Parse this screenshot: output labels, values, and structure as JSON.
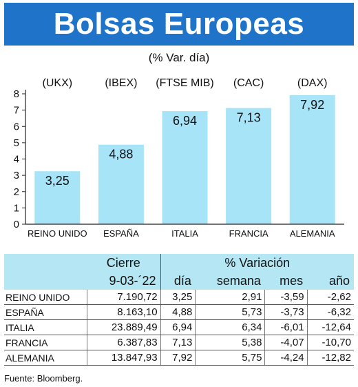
{
  "header": {
    "title": "Bolsas Europeas",
    "subtitle": "(% Var. día)"
  },
  "chart_data": {
    "type": "bar",
    "categories": [
      "REINO UNIDO",
      "ESPAÑA",
      "ITALIA",
      "FRANCIA",
      "ALEMANIA"
    ],
    "indices": [
      "(UKX)",
      "(IBEX)",
      "(FTSE MIB)",
      "(CAC)",
      "(DAX)"
    ],
    "values": [
      3.25,
      4.88,
      6.94,
      7.13,
      7.92
    ],
    "value_labels": [
      "3,25",
      "4,88",
      "6,94",
      "7,13",
      "7,92"
    ],
    "ylim": [
      0,
      8
    ],
    "yticks": [
      0,
      1,
      2,
      3,
      4,
      5,
      6,
      7,
      8
    ],
    "bar_color": "#a8e4f8"
  },
  "table": {
    "group_headers": [
      "Cierre",
      "% Variación"
    ],
    "date": "9-03-´22",
    "sub_headers": [
      "día",
      "semana",
      "mes",
      "año"
    ],
    "rows": [
      {
        "name": "REINO UNIDO",
        "cierre": "7.190,72",
        "dia": "3,25",
        "semana": "2,91",
        "mes": "-3,59",
        "anio": "-2,62"
      },
      {
        "name": "ESPAÑA",
        "cierre": "8.163,10",
        "dia": "4,88",
        "semana": "5,73",
        "mes": "-3,73",
        "anio": "-6,32"
      },
      {
        "name": "ITALIA",
        "cierre": "23.889,49",
        "dia": "6,94",
        "semana": "6,34",
        "mes": "-6,01",
        "anio": "-12,64"
      },
      {
        "name": "FRANCIA",
        "cierre": "6.387,83",
        "dia": "7,13",
        "semana": "5,38",
        "mes": "-4,07",
        "anio": "-10,70"
      },
      {
        "name": "ALEMANIA",
        "cierre": "13.847,93",
        "dia": "7,92",
        "semana": "5,75",
        "mes": "-4,24",
        "anio": "-12,82"
      }
    ]
  },
  "footer": {
    "source": "Fuente: Bloomberg."
  }
}
